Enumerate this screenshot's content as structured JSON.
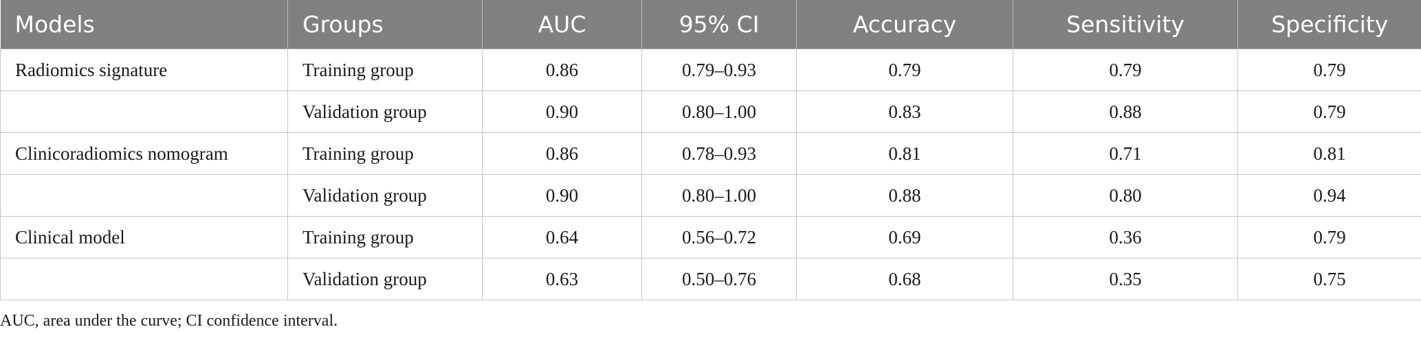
{
  "table": {
    "headers": [
      "Models",
      "Groups",
      "AUC",
      "95% CI",
      "Accuracy",
      "Sensitivity",
      "Specificity"
    ],
    "rows": [
      {
        "model": "Radiomics signature",
        "group": "Training group",
        "auc": "0.86",
        "ci": "0.79–0.93",
        "accuracy": "0.79",
        "sensitivity": "0.79",
        "specificity": "0.79"
      },
      {
        "model": "",
        "group": "Validation group",
        "auc": "0.90",
        "ci": "0.80–1.00",
        "accuracy": "0.83",
        "sensitivity": "0.88",
        "specificity": "0.79"
      },
      {
        "model": "Clinicoradiomics nomogram",
        "group": "Training group",
        "auc": "0.86",
        "ci": "0.78–0.93",
        "accuracy": "0.81",
        "sensitivity": "0.71",
        "specificity": "0.81"
      },
      {
        "model": "",
        "group": "Validation group",
        "auc": "0.90",
        "ci": "0.80–1.00",
        "accuracy": "0.88",
        "sensitivity": "0.80",
        "specificity": "0.94"
      },
      {
        "model": "Clinical model",
        "group": "Training group",
        "auc": "0.64",
        "ci": "0.56–0.72",
        "accuracy": "0.69",
        "sensitivity": "0.36",
        "specificity": "0.79"
      },
      {
        "model": "",
        "group": "Validation group",
        "auc": "0.63",
        "ci": "0.50–0.76",
        "accuracy": "0.68",
        "sensitivity": "0.35",
        "specificity": "0.75"
      }
    ]
  },
  "footnote": "AUC, area under the curve; CI confidence interval.",
  "colors": {
    "header_bg": "#808080",
    "header_text": "#ffffff",
    "grid_line": "#c4c4c4",
    "body_text": "#1a1a1a"
  }
}
